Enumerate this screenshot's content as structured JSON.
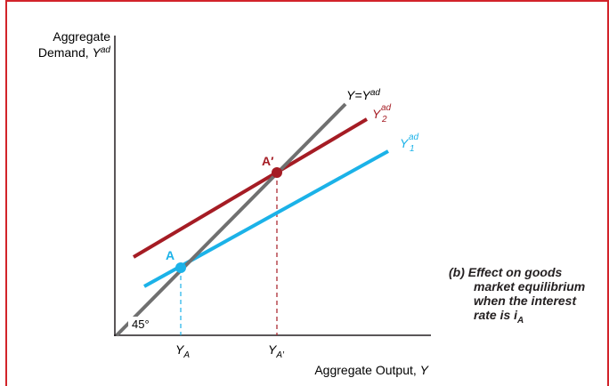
{
  "diagram": {
    "y_axis_label_line1": "Aggregate",
    "y_axis_label_line2_main": "Demand, ",
    "y_axis_label_line2_var": "Y",
    "y_axis_label_line2_sup": "ad",
    "x_axis_label": "Aggregate Output, ",
    "x_axis_label_var": "Y",
    "angle_label": "45°",
    "tick_YA_main": "Y",
    "tick_YA_sub": "A",
    "tick_YA2_main": "Y",
    "tick_YA2_sub": "A′",
    "point_A_label": "A",
    "point_A2_label": "A′",
    "line_45_label_main": "Y=Y",
    "line_45_label_sup": "ad",
    "line_Y2_label_main": "Y",
    "line_Y2_label_sup": "ad",
    "line_Y2_label_sub": "2",
    "line_Y1_label_main": "Y",
    "line_Y1_label_sup": "ad",
    "line_Y1_label_sub": "1"
  },
  "caption": {
    "line1": "(b) Effect on goods",
    "line2": "market equilibrium",
    "line3": "when the interest",
    "line4": "rate is ",
    "line4_var": "i",
    "line4_sub": "A"
  },
  "colors": {
    "frame": "#d2232a",
    "line_45": "#707070",
    "line_Y2": "#a51c24",
    "line_Y1": "#1bb2e8",
    "text": "#231f20"
  }
}
